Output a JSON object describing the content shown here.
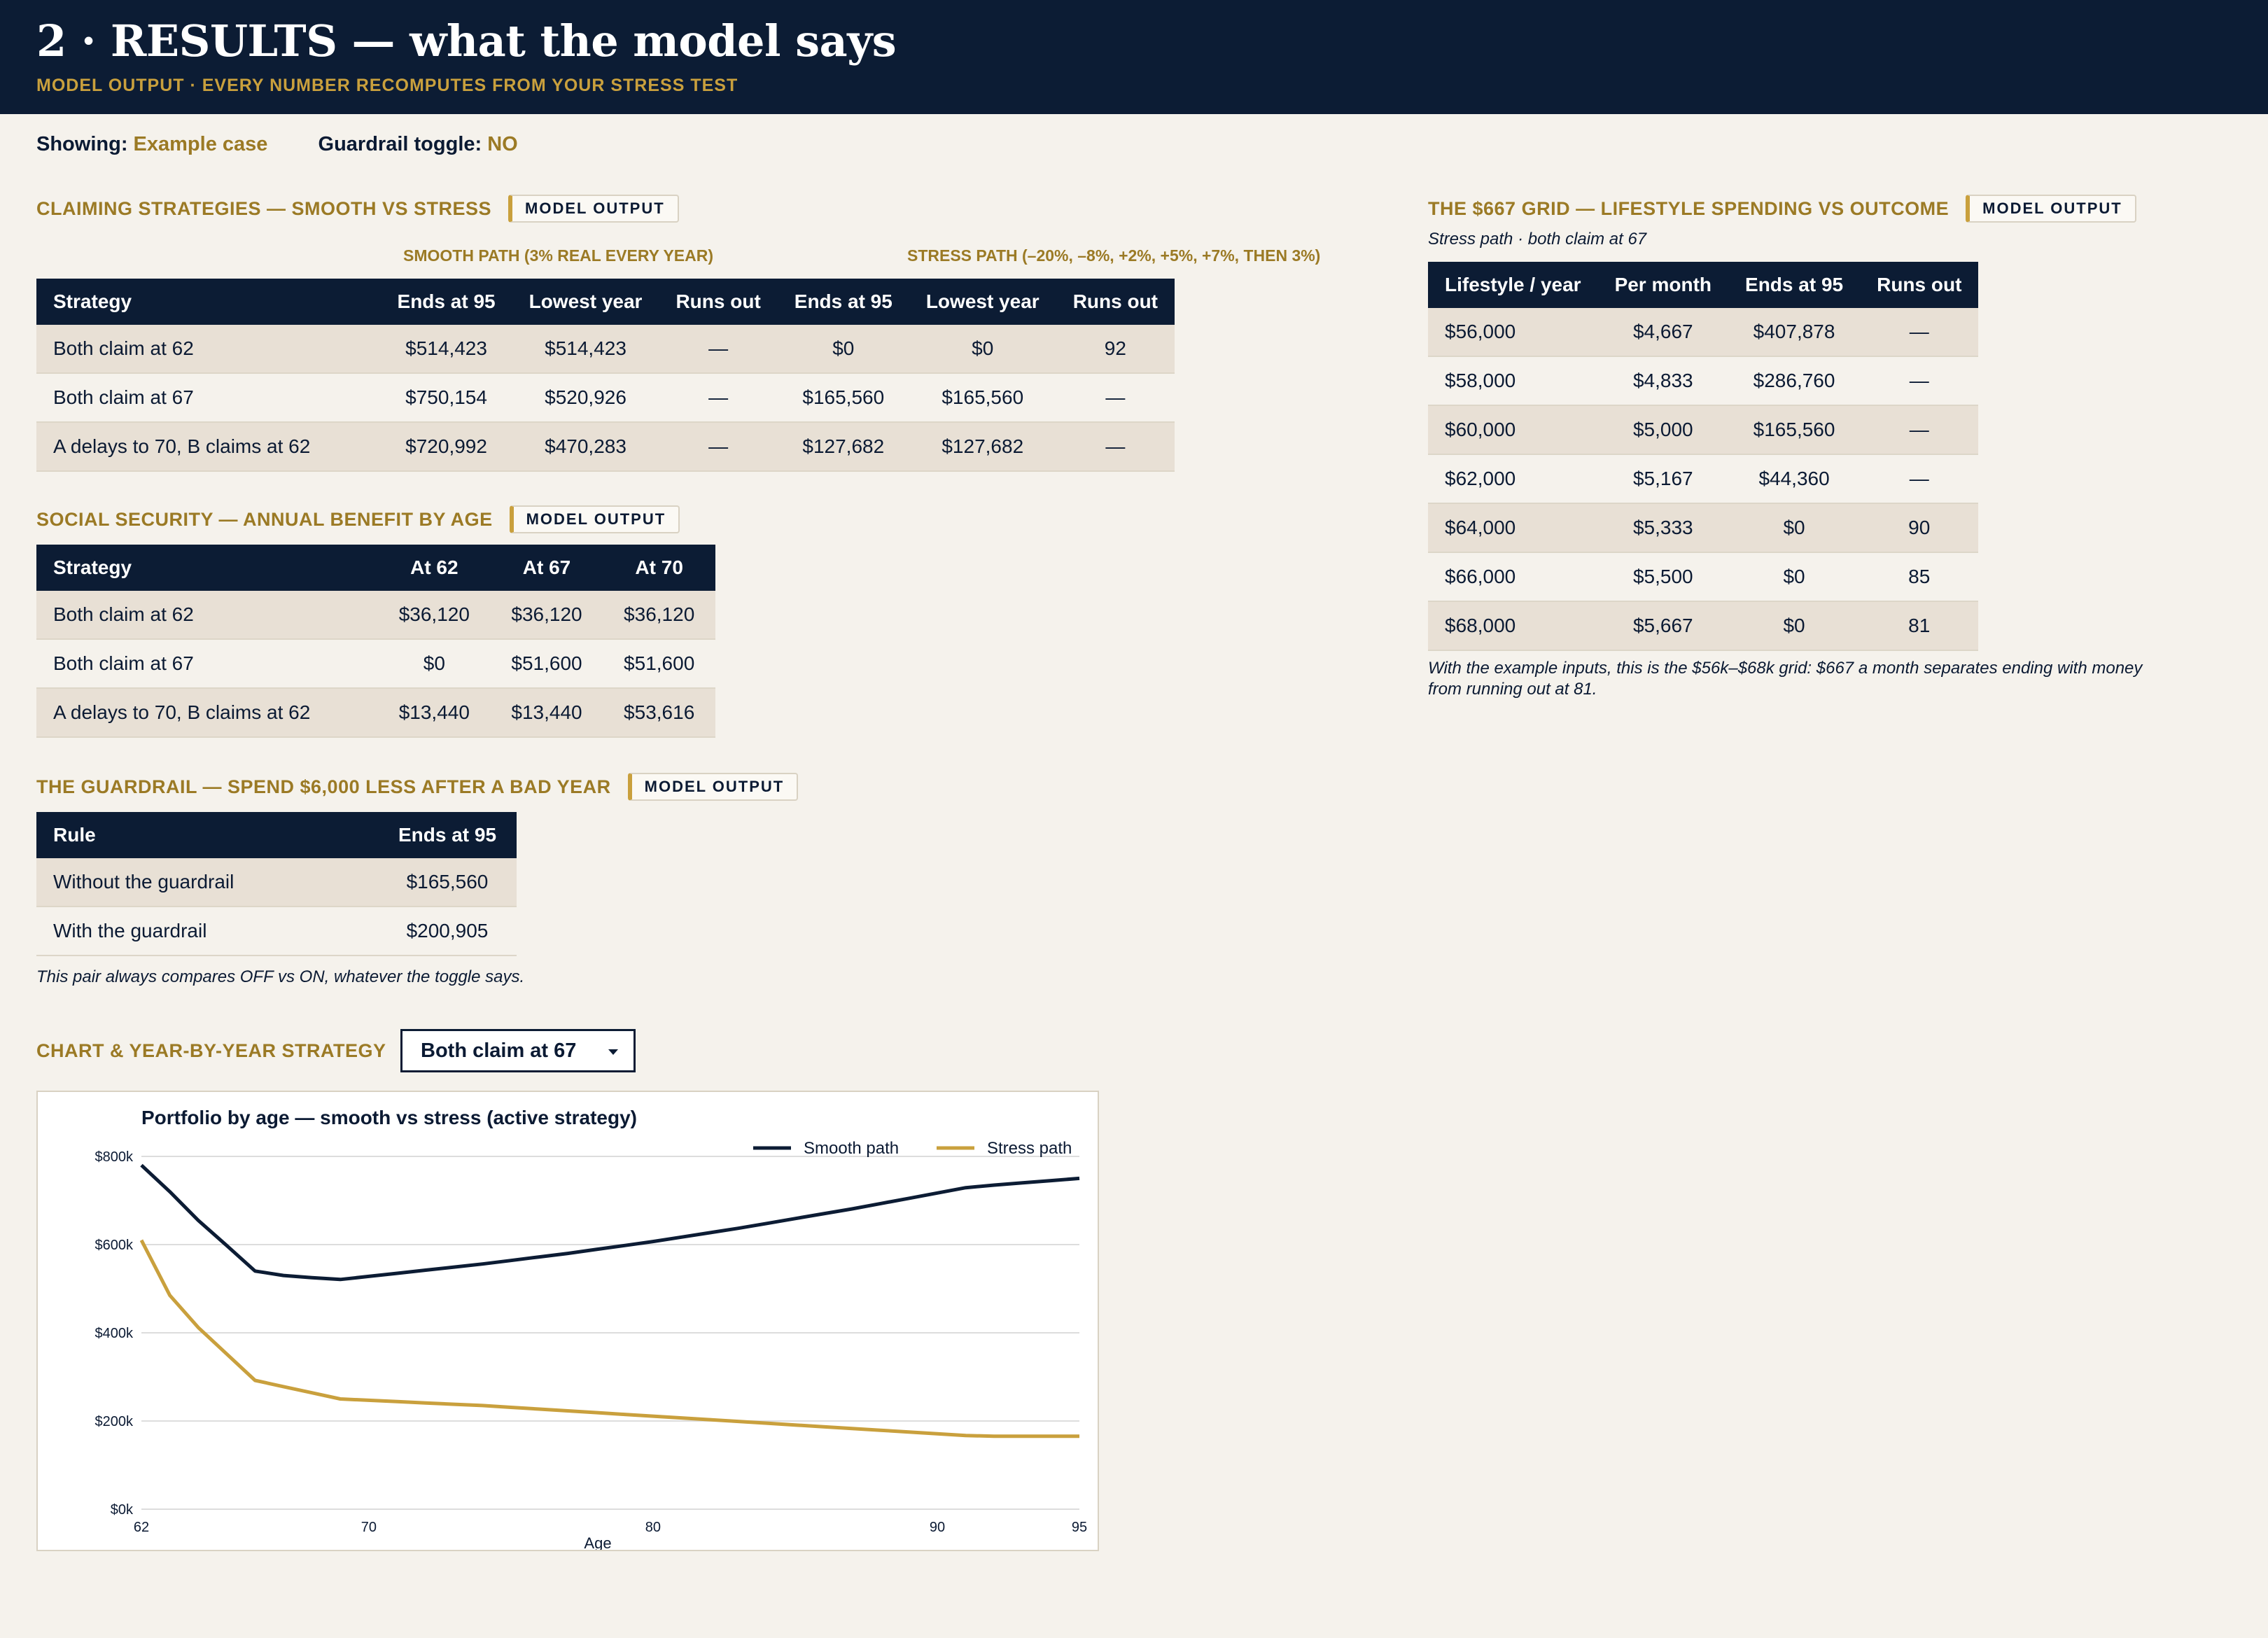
{
  "header": {
    "title": "2 · RESULTS — what the model says",
    "subtitle": "MODEL OUTPUT · EVERY NUMBER RECOMPUTES FROM YOUR STRESS TEST"
  },
  "status": {
    "showing_label": "Showing:",
    "showing_value": "Example case",
    "guardrail_label": "Guardrail toggle:",
    "guardrail_value": "NO"
  },
  "badge_label": "MODEL OUTPUT",
  "claiming": {
    "title": "CLAIMING STRATEGIES — SMOOTH VS STRESS",
    "smooth_header": "SMOOTH PATH (3% REAL EVERY YEAR)",
    "stress_header": "STRESS PATH (–20%, –8%, +2%, +5%, +7%, THEN 3%)",
    "columns": [
      "Strategy",
      "Ends at 95",
      "Lowest year",
      "Runs out",
      "Ends at 95",
      "Lowest year",
      "Runs out"
    ],
    "rows": [
      [
        "Both claim at 62",
        "$514,423",
        "$514,423",
        "—",
        "$0",
        "$0",
        "92"
      ],
      [
        "Both claim at 67",
        "$750,154",
        "$520,926",
        "—",
        "$165,560",
        "$165,560",
        "—"
      ],
      [
        "A delays to 70, B claims at 62",
        "$720,992",
        "$470,283",
        "—",
        "$127,682",
        "$127,682",
        "—"
      ]
    ]
  },
  "social_security": {
    "title": "SOCIAL SECURITY — ANNUAL BENEFIT BY AGE",
    "columns": [
      "Strategy",
      "At 62",
      "At 67",
      "At 70"
    ],
    "rows": [
      [
        "Both claim at 62",
        "$36,120",
        "$36,120",
        "$36,120"
      ],
      [
        "Both claim at 67",
        "$0",
        "$51,600",
        "$51,600"
      ],
      [
        "A delays to 70, B claims at 62",
        "$13,440",
        "$13,440",
        "$53,616"
      ]
    ]
  },
  "guardrail": {
    "title": "THE GUARDRAIL — SPEND $6,000 LESS AFTER A BAD YEAR",
    "columns": [
      "Rule",
      "Ends at 95"
    ],
    "rows": [
      [
        "Without the guardrail",
        "$165,560"
      ],
      [
        "With the guardrail",
        "$200,905"
      ]
    ],
    "note": "This pair always compares OFF vs ON, whatever the toggle says."
  },
  "grid": {
    "title": "THE $667 GRID — LIFESTYLE SPENDING VS OUTCOME",
    "subtitle": "Stress path · both claim at 67",
    "columns": [
      "Lifestyle / year",
      "Per month",
      "Ends at 95",
      "Runs out"
    ],
    "rows": [
      [
        "$56,000",
        "$4,667",
        "$407,878",
        "—"
      ],
      [
        "$58,000",
        "$4,833",
        "$286,760",
        "—"
      ],
      [
        "$60,000",
        "$5,000",
        "$165,560",
        "—"
      ],
      [
        "$62,000",
        "$5,167",
        "$44,360",
        "—"
      ],
      [
        "$64,000",
        "$5,333",
        "$0",
        "90"
      ],
      [
        "$66,000",
        "$5,500",
        "$0",
        "85"
      ],
      [
        "$68,000",
        "$5,667",
        "$0",
        "81"
      ]
    ],
    "note": "With the example inputs, this is the $56k–$68k grid: $667 a month separates ending with money from running out at 81."
  },
  "chart_section": {
    "title": "CHART & YEAR-BY-YEAR STRATEGY",
    "selected_strategy": "Both claim at 67"
  },
  "chart_data": {
    "type": "line",
    "title": "Portfolio by age — smooth vs stress (active strategy)",
    "xlabel": "Age",
    "ylabel": "",
    "xlim": [
      62,
      95
    ],
    "ylim": [
      0,
      800000
    ],
    "xticks": [
      "62",
      "70",
      "80",
      "90",
      "95"
    ],
    "yticks": [
      "$0k",
      "$200k",
      "$400k",
      "$600k",
      "$800k"
    ],
    "legend_position": "top-right",
    "colors": {
      "smooth": "#0c1c34",
      "stress": "#c9a03d"
    },
    "series": [
      {
        "name": "Smooth path",
        "x": [
          62,
          63,
          64,
          65,
          66,
          67,
          68,
          69,
          70,
          71,
          72,
          73,
          74,
          75,
          76,
          77,
          78,
          79,
          80,
          81,
          82,
          83,
          84,
          85,
          86,
          87,
          88,
          89,
          90,
          91,
          92,
          93,
          94,
          95
        ],
        "values": [
          780000,
          720000,
          655000,
          598000,
          540000,
          530000,
          525000,
          520926,
          528000,
          535000,
          542000,
          549000,
          556000,
          564000,
          572000,
          580000,
          589000,
          598000,
          607000,
          617000,
          627000,
          637000,
          648000,
          659000,
          670000,
          681000,
          693000,
          705000,
          717000,
          729000,
          735000,
          740000,
          745000,
          750154
        ]
      },
      {
        "name": "Stress path",
        "x": [
          62,
          63,
          64,
          65,
          66,
          67,
          68,
          69,
          70,
          71,
          72,
          73,
          74,
          75,
          76,
          77,
          78,
          79,
          80,
          81,
          82,
          83,
          84,
          85,
          86,
          87,
          88,
          89,
          90,
          91,
          92,
          93,
          94,
          95
        ],
        "values": [
          610000,
          485000,
          412000,
          352000,
          292000,
          278000,
          264000,
          250000,
          247000,
          244000,
          241000,
          238000,
          235000,
          231000,
          227000,
          223000,
          219000,
          215000,
          211000,
          207000,
          203000,
          199000,
          195000,
          191000,
          187000,
          183000,
          179000,
          175000,
          171000,
          167000,
          165600,
          165560,
          165560,
          165560
        ]
      }
    ]
  }
}
